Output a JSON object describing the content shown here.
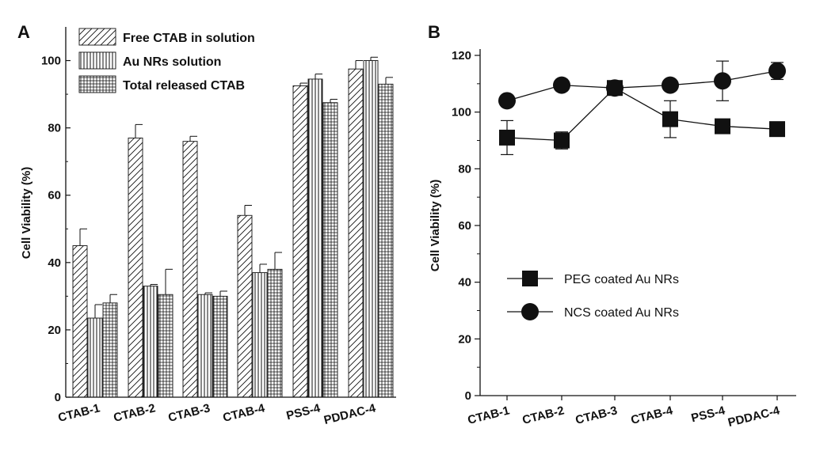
{
  "chart_data": [
    {
      "panel": "A",
      "type": "bar",
      "ylabel": "Cell Viability (%)",
      "xlabel": "",
      "ylim": [
        0,
        110
      ],
      "yticks": [
        0,
        20,
        40,
        60,
        80,
        100
      ],
      "categories": [
        "CTAB-1",
        "CTAB-2",
        "CTAB-3",
        "CTAB-4",
        "PSS-4",
        "PDDAC-4"
      ],
      "legend_position": "top-left",
      "series": [
        {
          "name": "Free CTAB in solution",
          "pattern": "diagonal",
          "values": [
            45,
            77,
            76,
            54,
            92.5,
            97.5
          ],
          "errors": [
            5,
            4,
            1.5,
            3,
            0.8,
            2.5
          ]
        },
        {
          "name": "Au NRs solution",
          "pattern": "vertical",
          "values": [
            23.5,
            33,
            30.5,
            37,
            94.5,
            100
          ],
          "errors": [
            4,
            0.5,
            0.5,
            2.5,
            1.5,
            1
          ]
        },
        {
          "name": "Total released CTAB",
          "pattern": "grid",
          "values": [
            28,
            30.5,
            30,
            38,
            87.5,
            93
          ],
          "errors": [
            2.5,
            7.5,
            1.5,
            5,
            1,
            2
          ]
        }
      ]
    },
    {
      "panel": "B",
      "type": "line",
      "ylabel": "Cell Viability (%)",
      "xlabel": "",
      "ylim": [
        0,
        120
      ],
      "yticks": [
        0,
        20,
        40,
        60,
        80,
        100,
        120
      ],
      "categories": [
        "CTAB-1",
        "CTAB-2",
        "CTAB-3",
        "CTAB-4",
        "PSS-4",
        "PDDAC-4"
      ],
      "legend_position": "center-left",
      "series": [
        {
          "name": "PEG coated Au NRs",
          "marker": "square",
          "values": [
            91,
            90,
            108.5,
            97.5,
            95,
            94
          ],
          "errors": [
            6,
            3,
            1.5,
            6.5,
            1.5,
            2
          ]
        },
        {
          "name": "NCS coated Au NRs",
          "marker": "circle",
          "values": [
            104,
            109.5,
            108.5,
            109.5,
            111,
            114.5
          ],
          "errors": [
            1.5,
            2,
            1.5,
            1.5,
            7,
            3
          ]
        }
      ]
    }
  ],
  "colors": {
    "ink": "#111111",
    "background": "#ffffff"
  }
}
